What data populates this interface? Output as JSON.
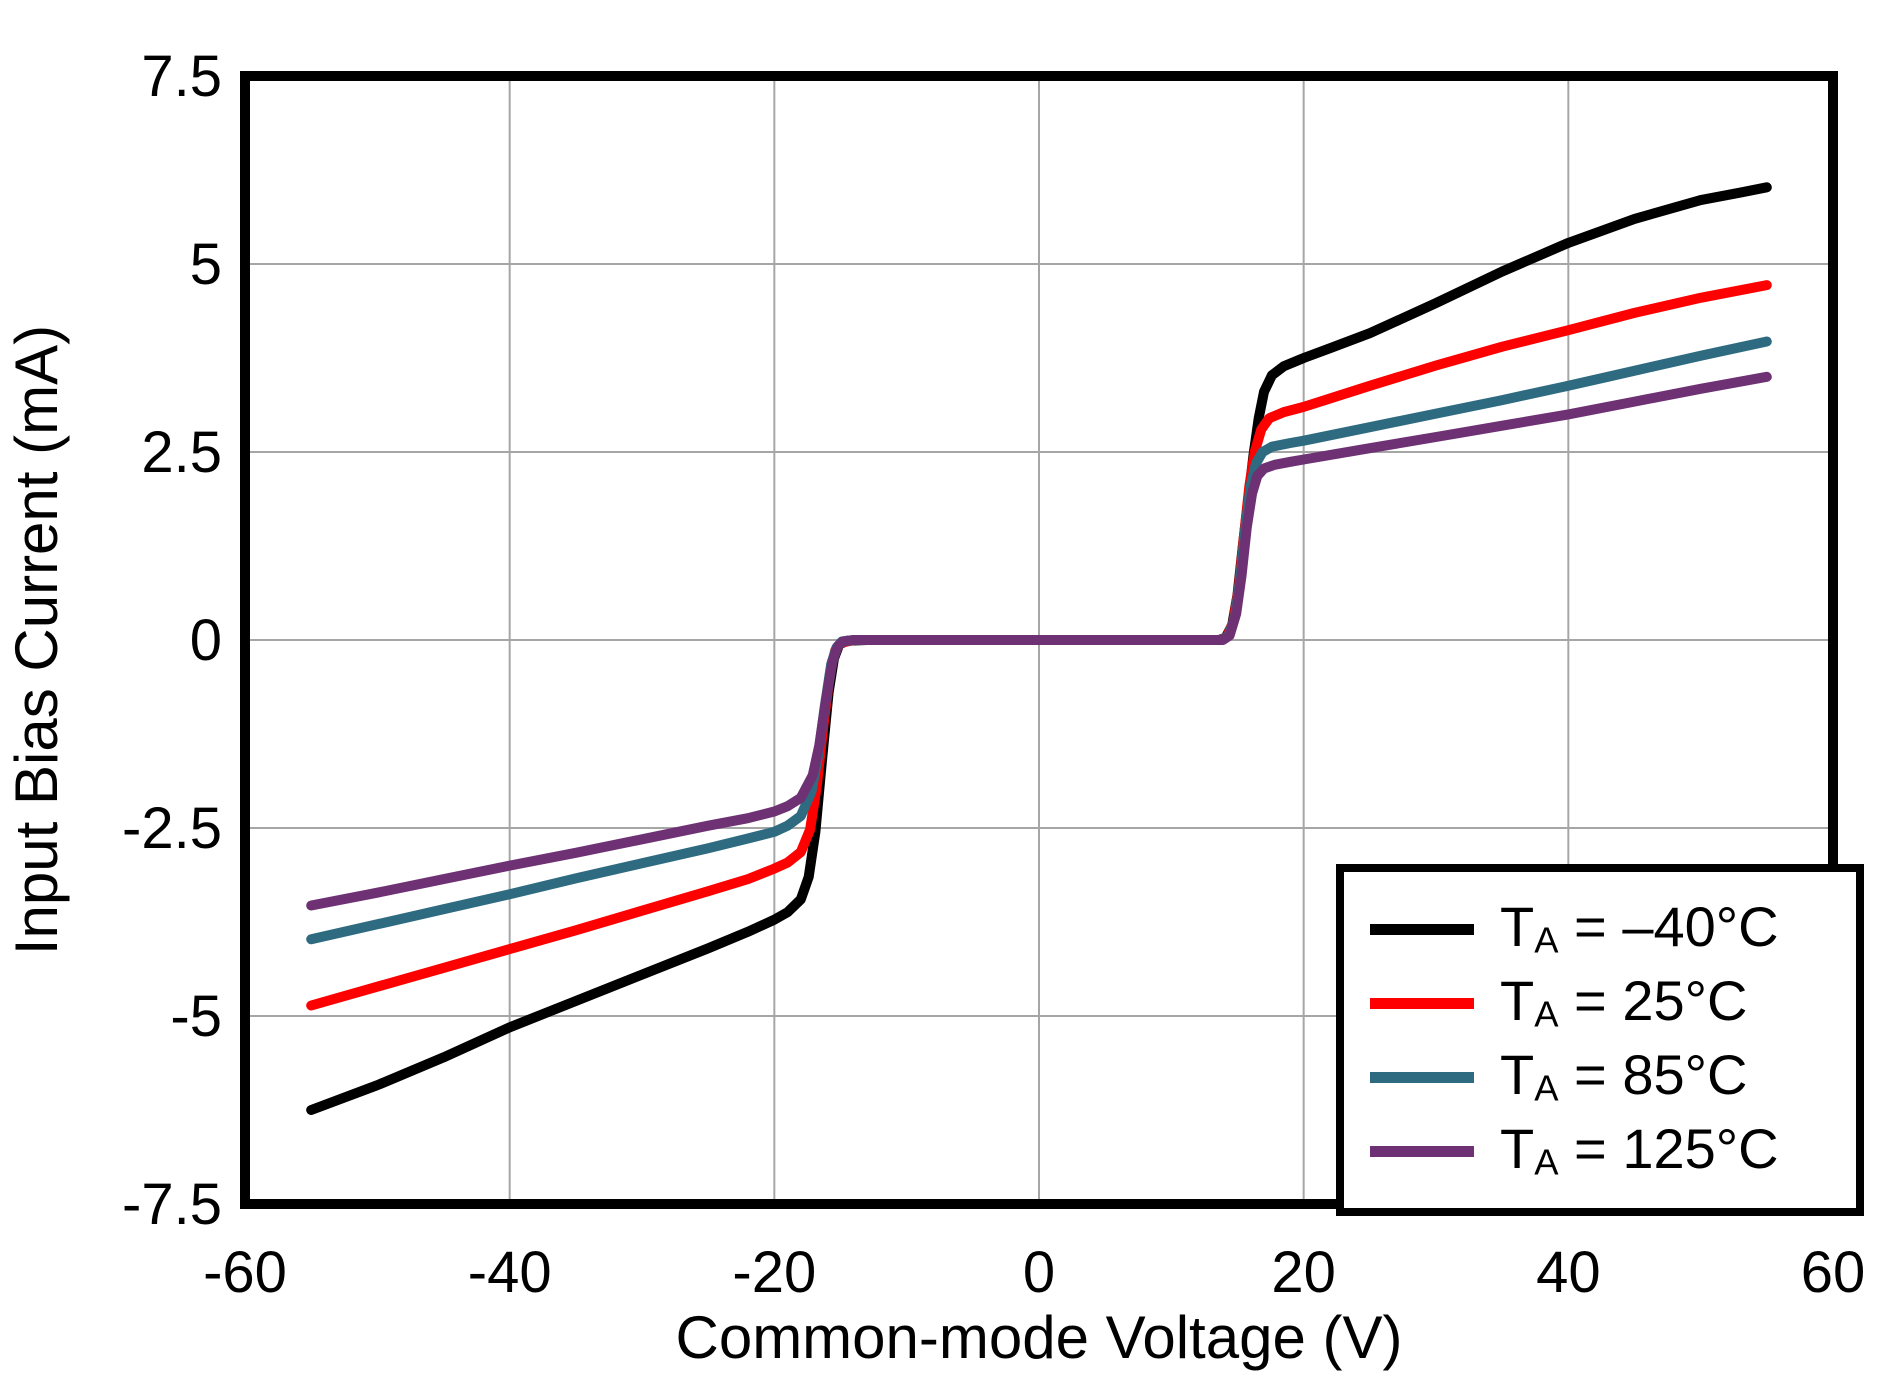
{
  "chart_data": {
    "type": "line",
    "title": "",
    "xlabel": "Common-mode Voltage (V)",
    "ylabel": "Input Bias Current (mA)",
    "xlim": [
      -60,
      60
    ],
    "ylim": [
      -7.5,
      7.5
    ],
    "grid": true,
    "legend_position": "bottom-right",
    "x_ticks": [
      -60,
      -40,
      -20,
      0,
      20,
      40,
      60
    ],
    "x_tick_labels": [
      "-60",
      "-40",
      "-20",
      "0",
      "20",
      "40",
      "60"
    ],
    "y_ticks": [
      -7.5,
      -5,
      -2.5,
      0,
      2.5,
      5,
      7.5
    ],
    "y_tick_labels": [
      "-7.5",
      "-5",
      "-2.5",
      "0",
      "2.5",
      "5",
      "7.5"
    ],
    "series": [
      {
        "label_t": "T",
        "label_sub": "A",
        "label_rest": " = –40°C",
        "color": "#000000",
        "points": [
          [
            -55,
            -6.25
          ],
          [
            -50,
            -5.92
          ],
          [
            -45,
            -5.55
          ],
          [
            -40,
            -5.15
          ],
          [
            -35,
            -4.8
          ],
          [
            -30,
            -4.45
          ],
          [
            -25,
            -4.1
          ],
          [
            -22,
            -3.88
          ],
          [
            -20,
            -3.72
          ],
          [
            -19,
            -3.62
          ],
          [
            -18,
            -3.45
          ],
          [
            -17.4,
            -3.15
          ],
          [
            -16.9,
            -2.55
          ],
          [
            -16.4,
            -1.6
          ],
          [
            -15.9,
            -0.7
          ],
          [
            -15.5,
            -0.25
          ],
          [
            -15.1,
            -0.06
          ],
          [
            -14.5,
            -0.01
          ],
          [
            -13,
            0
          ],
          [
            0,
            0
          ],
          [
            13.6,
            0
          ],
          [
            14.1,
            0.03
          ],
          [
            14.6,
            0.2
          ],
          [
            15.0,
            0.6
          ],
          [
            15.4,
            1.25
          ],
          [
            15.8,
            1.85
          ],
          [
            16.2,
            2.45
          ],
          [
            16.6,
            2.95
          ],
          [
            17.0,
            3.3
          ],
          [
            17.6,
            3.52
          ],
          [
            18.5,
            3.64
          ],
          [
            20,
            3.75
          ],
          [
            22,
            3.88
          ],
          [
            25,
            4.08
          ],
          [
            30,
            4.48
          ],
          [
            35,
            4.9
          ],
          [
            40,
            5.28
          ],
          [
            45,
            5.6
          ],
          [
            50,
            5.85
          ],
          [
            53,
            5.95
          ],
          [
            55,
            6.02
          ]
        ]
      },
      {
        "label_t": "T",
        "label_sub": "A",
        "label_rest": " = 25°C",
        "color": "#FF0000",
        "points": [
          [
            -55,
            -4.86
          ],
          [
            -50,
            -4.61
          ],
          [
            -45,
            -4.36
          ],
          [
            -40,
            -4.11
          ],
          [
            -35,
            -3.86
          ],
          [
            -30,
            -3.6
          ],
          [
            -25,
            -3.34
          ],
          [
            -22,
            -3.18
          ],
          [
            -20,
            -3.04
          ],
          [
            -19,
            -2.96
          ],
          [
            -18,
            -2.82
          ],
          [
            -17.3,
            -2.52
          ],
          [
            -16.8,
            -1.95
          ],
          [
            -16.3,
            -1.15
          ],
          [
            -15.8,
            -0.45
          ],
          [
            -15.4,
            -0.14
          ],
          [
            -15.0,
            -0.04
          ],
          [
            -14,
            0
          ],
          [
            0,
            0
          ],
          [
            13.7,
            0
          ],
          [
            14.2,
            0.04
          ],
          [
            14.7,
            0.25
          ],
          [
            15.1,
            0.7
          ],
          [
            15.5,
            1.4
          ],
          [
            15.9,
            2.05
          ],
          [
            16.3,
            2.5
          ],
          [
            16.8,
            2.8
          ],
          [
            17.4,
            2.95
          ],
          [
            18.5,
            3.03
          ],
          [
            20,
            3.1
          ],
          [
            25,
            3.38
          ],
          [
            30,
            3.65
          ],
          [
            35,
            3.9
          ],
          [
            40,
            4.12
          ],
          [
            45,
            4.35
          ],
          [
            50,
            4.55
          ],
          [
            55,
            4.72
          ]
        ]
      },
      {
        "label_t": "T",
        "label_sub": "A",
        "label_rest": " = 85°C",
        "color": "#2E6B80",
        "points": [
          [
            -55,
            -3.98
          ],
          [
            -50,
            -3.78
          ],
          [
            -45,
            -3.58
          ],
          [
            -40,
            -3.38
          ],
          [
            -35,
            -3.17
          ],
          [
            -30,
            -2.97
          ],
          [
            -25,
            -2.77
          ],
          [
            -22,
            -2.64
          ],
          [
            -20,
            -2.55
          ],
          [
            -19,
            -2.47
          ],
          [
            -18,
            -2.34
          ],
          [
            -17.2,
            -2.02
          ],
          [
            -16.7,
            -1.55
          ],
          [
            -16.2,
            -0.9
          ],
          [
            -15.7,
            -0.32
          ],
          [
            -15.3,
            -0.1
          ],
          [
            -14.9,
            -0.02
          ],
          [
            -14,
            0
          ],
          [
            0,
            0
          ],
          [
            13.8,
            0
          ],
          [
            14.3,
            0.05
          ],
          [
            14.8,
            0.3
          ],
          [
            15.2,
            0.8
          ],
          [
            15.6,
            1.5
          ],
          [
            16.0,
            2.05
          ],
          [
            16.4,
            2.35
          ],
          [
            16.9,
            2.5
          ],
          [
            17.6,
            2.57
          ],
          [
            19,
            2.62
          ],
          [
            20,
            2.65
          ],
          [
            25,
            2.83
          ],
          [
            30,
            3.01
          ],
          [
            35,
            3.19
          ],
          [
            40,
            3.38
          ],
          [
            45,
            3.58
          ],
          [
            50,
            3.78
          ],
          [
            55,
            3.97
          ]
        ]
      },
      {
        "label_t": "T",
        "label_sub": "A",
        "label_rest": " = 125°C",
        "color": "#6E3274",
        "points": [
          [
            -55,
            -3.53
          ],
          [
            -50,
            -3.36
          ],
          [
            -45,
            -3.18
          ],
          [
            -40,
            -3.0
          ],
          [
            -35,
            -2.83
          ],
          [
            -30,
            -2.65
          ],
          [
            -25,
            -2.47
          ],
          [
            -22,
            -2.37
          ],
          [
            -20,
            -2.28
          ],
          [
            -19,
            -2.21
          ],
          [
            -18,
            -2.1
          ],
          [
            -17.1,
            -1.8
          ],
          [
            -16.6,
            -1.4
          ],
          [
            -16.1,
            -0.8
          ],
          [
            -15.6,
            -0.28
          ],
          [
            -15.2,
            -0.08
          ],
          [
            -14.8,
            -0.02
          ],
          [
            -14,
            0
          ],
          [
            0,
            0
          ],
          [
            13.9,
            0
          ],
          [
            14.4,
            0.06
          ],
          [
            14.9,
            0.35
          ],
          [
            15.3,
            0.85
          ],
          [
            15.7,
            1.5
          ],
          [
            16.1,
            1.95
          ],
          [
            16.5,
            2.18
          ],
          [
            17.0,
            2.28
          ],
          [
            17.8,
            2.33
          ],
          [
            19,
            2.37
          ],
          [
            20,
            2.4
          ],
          [
            25,
            2.55
          ],
          [
            30,
            2.7
          ],
          [
            35,
            2.85
          ],
          [
            40,
            3.0
          ],
          [
            45,
            3.17
          ],
          [
            50,
            3.34
          ],
          [
            55,
            3.5
          ]
        ]
      }
    ]
  },
  "style": {
    "grid_color": "#A6A6A6",
    "frame_color": "#000000",
    "background": "#FFFFFF"
  }
}
